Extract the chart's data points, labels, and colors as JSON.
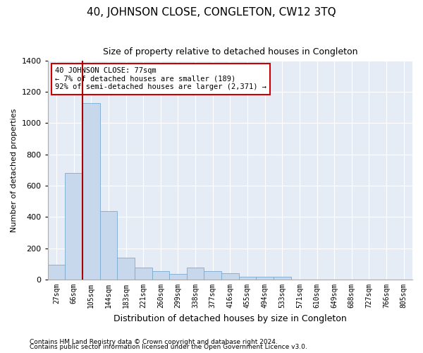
{
  "title": "40, JOHNSON CLOSE, CONGLETON, CW12 3TQ",
  "subtitle": "Size of property relative to detached houses in Congleton",
  "xlabel": "Distribution of detached houses by size in Congleton",
  "ylabel": "Number of detached properties",
  "footnote1": "Contains HM Land Registry data © Crown copyright and database right 2024.",
  "footnote2": "Contains public sector information licensed under the Open Government Licence v3.0.",
  "annotation_title": "40 JOHNSON CLOSE: 77sqm",
  "annotation_line1": "← 7% of detached houses are smaller (189)",
  "annotation_line2": "92% of semi-detached houses are larger (2,371) →",
  "categories": [
    "27sqm",
    "66sqm",
    "105sqm",
    "144sqm",
    "183sqm",
    "221sqm",
    "260sqm",
    "299sqm",
    "338sqm",
    "377sqm",
    "416sqm",
    "455sqm",
    "494sqm",
    "533sqm",
    "571sqm",
    "610sqm",
    "649sqm",
    "688sqm",
    "727sqm",
    "766sqm",
    "805sqm"
  ],
  "values": [
    95,
    680,
    1130,
    440,
    140,
    75,
    55,
    35,
    75,
    55,
    40,
    20,
    20,
    20,
    0,
    0,
    0,
    0,
    0,
    0,
    0
  ],
  "bar_color": "#c8d8ec",
  "bar_edge_color": "#7aabcf",
  "vline_color": "#aa0000",
  "annotation_box_color": "#cc0000",
  "background_color": "#e6ecf5",
  "ylim": [
    0,
    1400
  ],
  "yticks": [
    0,
    200,
    400,
    600,
    800,
    1000,
    1200,
    1400
  ],
  "vline_pos": 1.5,
  "figsize": [
    6.0,
    5.0
  ],
  "dpi": 100
}
